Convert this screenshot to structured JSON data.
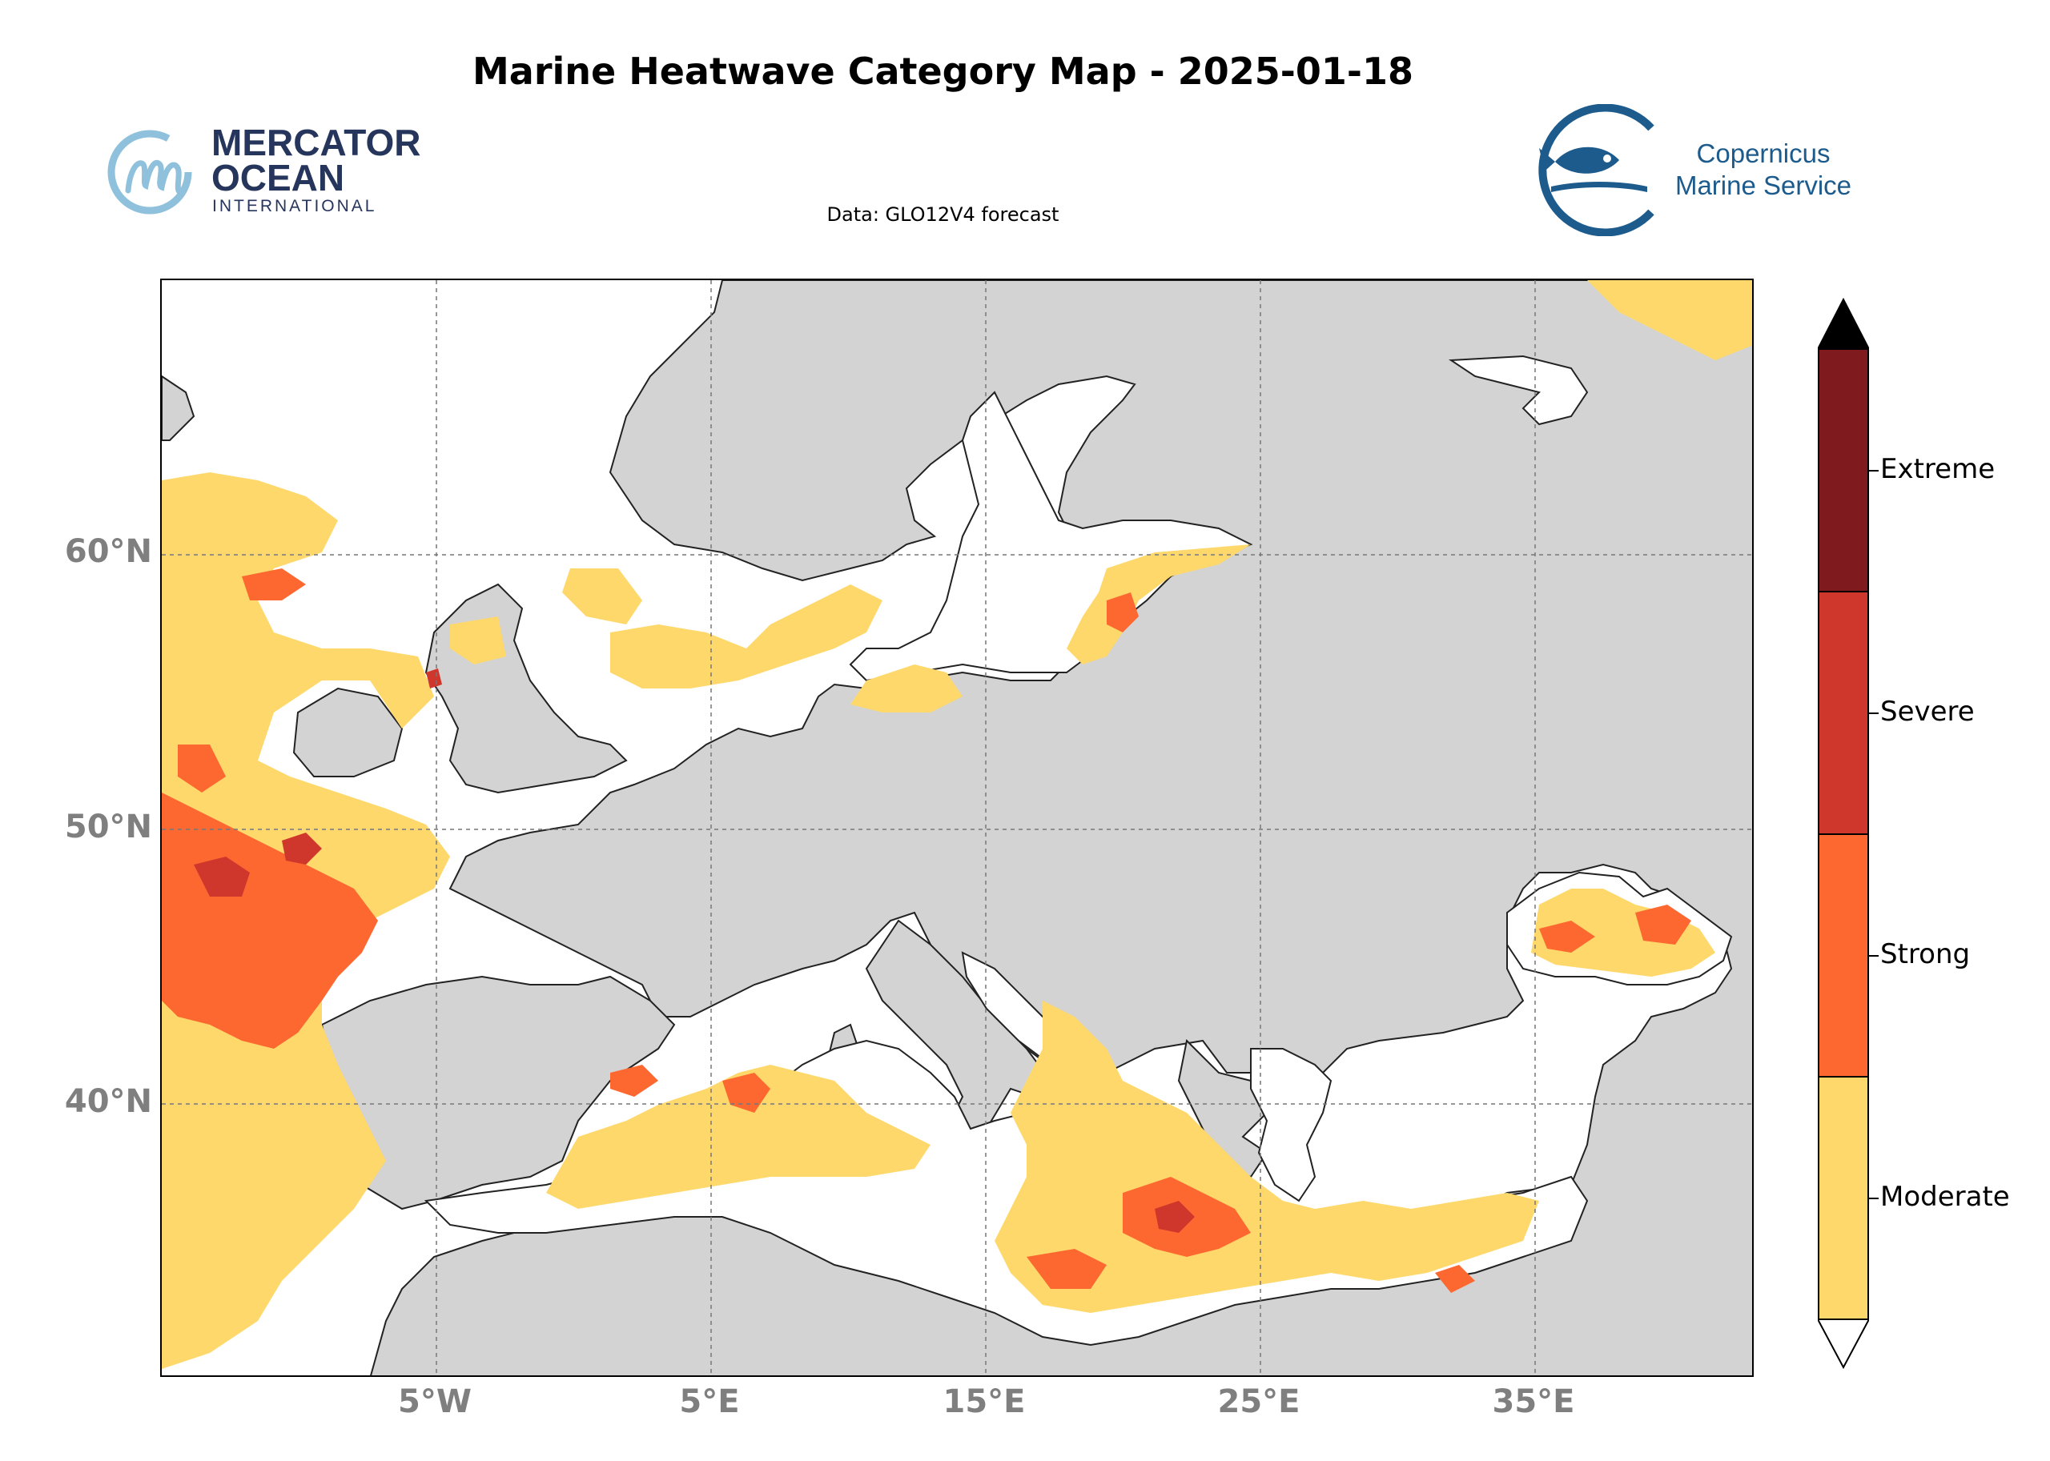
{
  "title": "Marine Heatwave Category Map - 2025-01-18",
  "subtitle": "Data: GLO12V4 forecast",
  "logos": {
    "left": {
      "line1": "MERCATOR",
      "line2": "OCEAN",
      "line3": "INTERNATIONAL",
      "color": "#26355c",
      "accent": "#8fc1dc"
    },
    "right": {
      "line1": "Copernicus",
      "line2": "Marine Service",
      "color": "#1d5b8c"
    }
  },
  "map": {
    "land_color": "#d3d3d3",
    "ocean_color": "#ffffff",
    "grid_style": "dashed gray",
    "lat_labels": [
      "60°N",
      "50°N",
      "40°N"
    ],
    "lon_labels": [
      "5°W",
      "5°E",
      "15°E",
      "25°E",
      "35°E"
    ],
    "extent": {
      "lon_min": -15,
      "lon_max": 43,
      "lat_min": 30,
      "lat_max": 70
    }
  },
  "legend": {
    "categories": [
      {
        "label": "Extreme",
        "color": "#7f1a1e"
      },
      {
        "label": "Severe",
        "color": "#d0372c"
      },
      {
        "label": "Strong",
        "color": "#fd6730"
      },
      {
        "label": "Moderate",
        "color": "#fed86a"
      }
    ],
    "extend_max_color": "#000000",
    "extend_min_color": "#ffffff"
  }
}
